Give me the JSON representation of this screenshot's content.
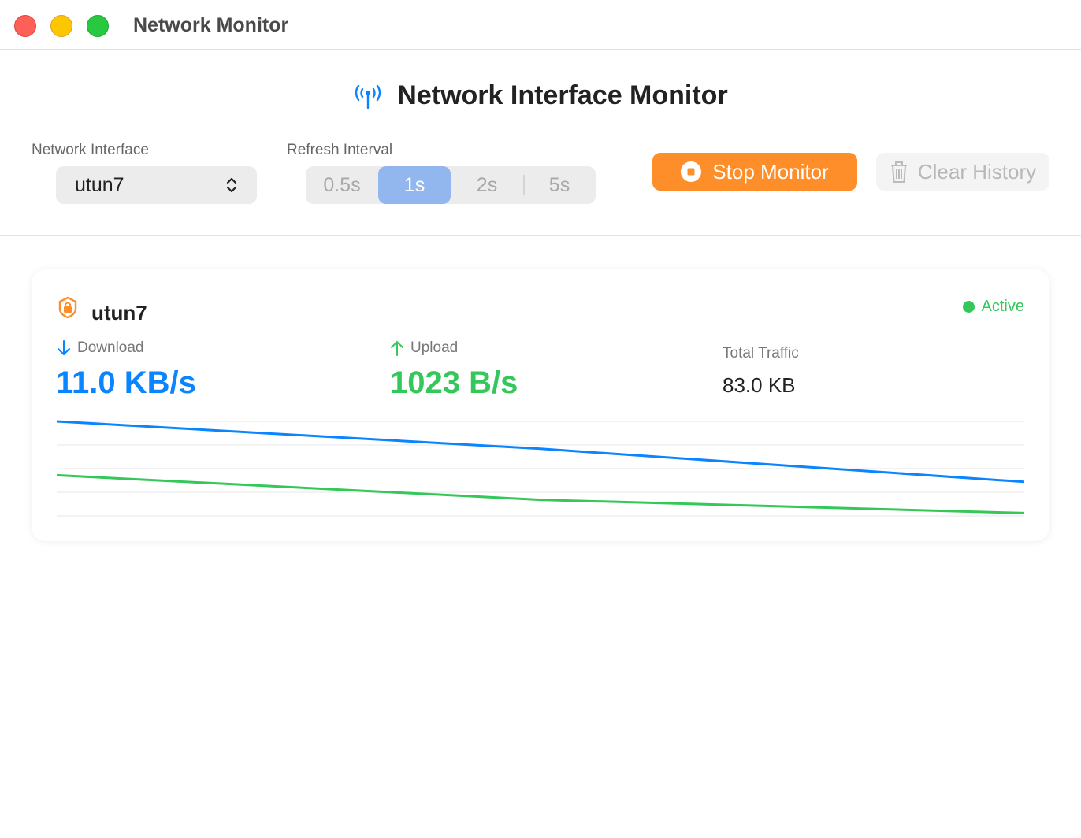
{
  "window": {
    "title": "Network Monitor"
  },
  "header": {
    "title": "Network Interface Monitor",
    "interface_label": "Network Interface",
    "interface_value": "utun7",
    "refresh_label": "Refresh Interval",
    "refresh_options": [
      "0.5s",
      "1s",
      "2s",
      "5s"
    ],
    "refresh_selected": "1s",
    "stop_label": "Stop Monitor",
    "clear_label": "Clear History"
  },
  "card": {
    "interface": "utun7",
    "status": "Active",
    "download_label": "Download",
    "download_value": "11.0 KB/s",
    "upload_label": "Upload",
    "upload_value": "1023 B/s",
    "total_label": "Total Traffic",
    "total_value": "83.0 KB"
  },
  "colors": {
    "download": "#0a84ff",
    "upload": "#34c759",
    "accent": "#fd8e2a"
  },
  "chart_data": {
    "type": "line",
    "grid": true,
    "ylim": [
      0,
      1
    ],
    "x": [
      0,
      1,
      2
    ],
    "series": [
      {
        "key": "download",
        "color": "#0a84ff",
        "values": [
          1.0,
          0.71,
          0.36
        ]
      },
      {
        "key": "upload",
        "color": "#34c759",
        "values": [
          0.43,
          0.17,
          0.03
        ]
      }
    ]
  }
}
